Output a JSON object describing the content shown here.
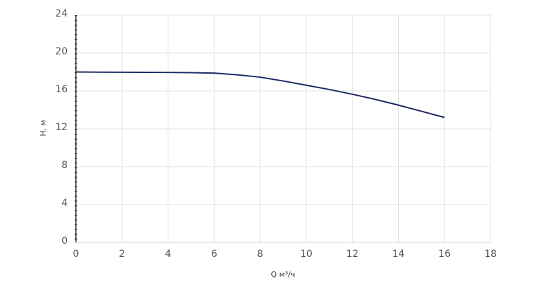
{
  "chart_data": {
    "type": "line",
    "x_label": "Q м³/ч",
    "y_label": "H, м",
    "x": [
      0,
      1,
      2,
      3,
      4,
      5,
      6,
      7,
      8,
      9,
      10,
      11,
      12,
      13,
      14,
      15,
      16
    ],
    "series": [
      {
        "color": "#1c2a66",
        "values": [
          18.0,
          17.98,
          17.97,
          17.96,
          17.95,
          17.93,
          17.88,
          17.7,
          17.45,
          17.05,
          16.6,
          16.15,
          15.65,
          15.1,
          14.5,
          13.85,
          13.2
        ]
      }
    ],
    "xlim": [
      0,
      18
    ],
    "ylim": [
      0,
      24
    ],
    "xticks": [
      0,
      2,
      4,
      6,
      8,
      10,
      12,
      14,
      16,
      18
    ],
    "yticks": [
      0,
      4,
      8,
      12,
      16,
      20,
      24
    ],
    "grid": true
  }
}
